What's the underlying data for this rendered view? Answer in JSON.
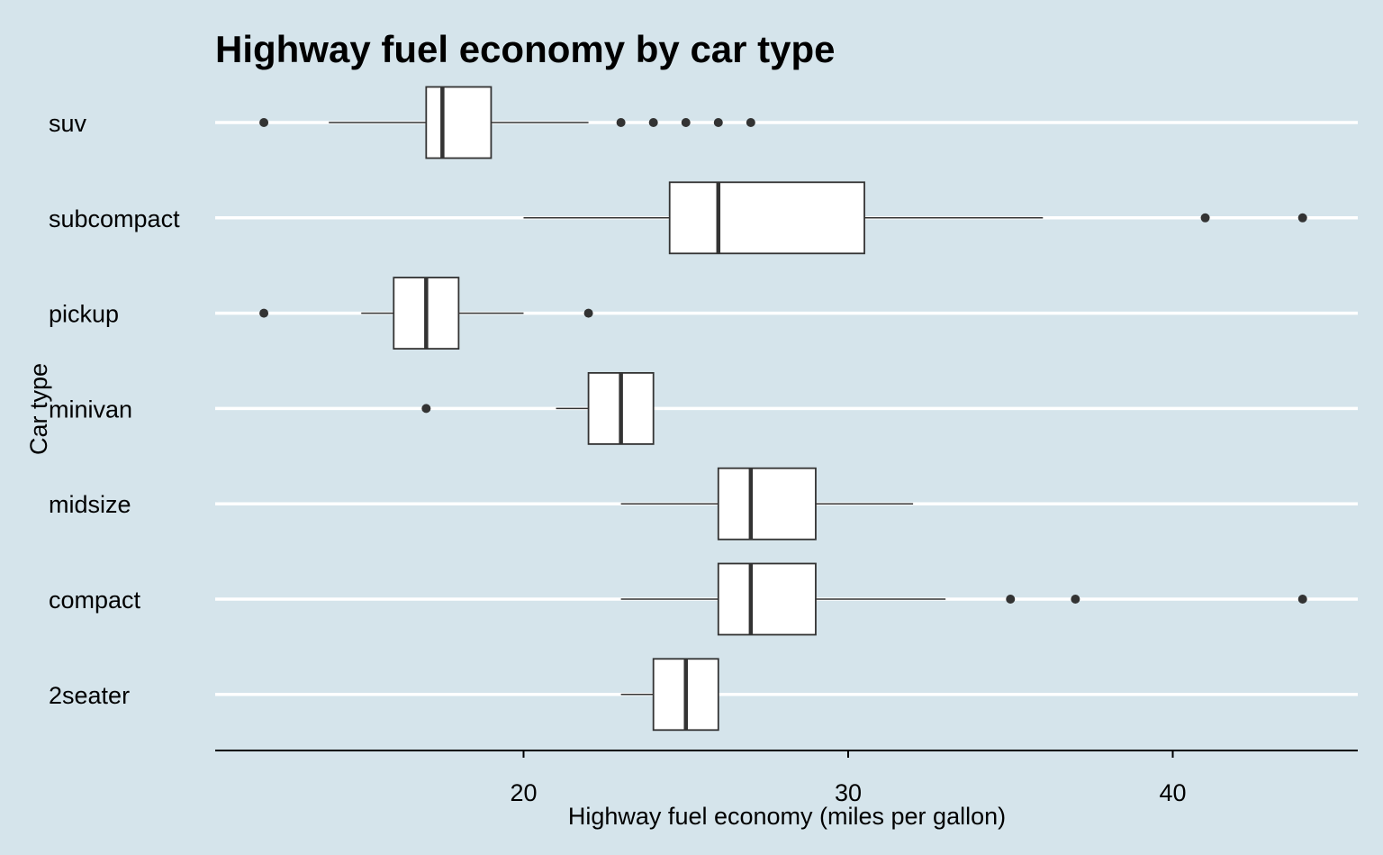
{
  "chart_data": {
    "type": "boxplot",
    "orientation": "horizontal",
    "title": "Highway fuel economy by car type",
    "xlabel": "Highway fuel economy (miles per gallon)",
    "ylabel": "Car type",
    "xlim": [
      10.5,
      45.7
    ],
    "xticks": [
      20,
      30,
      40
    ],
    "grid": "horizontal major lines only",
    "legend": "none",
    "colors": {
      "background": "#d5e4eb",
      "grid": "#ffffff",
      "box_fill": "#ffffff",
      "box_stroke": "#333333",
      "outlier": "#333333",
      "axis": "#000000"
    },
    "categories": [
      "suv",
      "subcompact",
      "pickup",
      "minivan",
      "midsize",
      "compact",
      "2seater"
    ],
    "boxes": [
      {
        "category": "suv",
        "whisker_low": 14,
        "q1": 17,
        "median": 17.5,
        "q3": 19,
        "whisker_high": 22,
        "outliers": [
          12,
          23,
          24,
          25,
          26,
          27
        ]
      },
      {
        "category": "subcompact",
        "whisker_low": 20,
        "q1": 24.5,
        "median": 26,
        "q3": 30.5,
        "whisker_high": 36,
        "outliers": [
          41,
          44
        ]
      },
      {
        "category": "pickup",
        "whisker_low": 15,
        "q1": 16,
        "median": 17,
        "q3": 18,
        "whisker_high": 20,
        "outliers": [
          12,
          22
        ]
      },
      {
        "category": "minivan",
        "whisker_low": 21,
        "q1": 22,
        "median": 23,
        "q3": 24,
        "whisker_high": 24,
        "outliers": [
          17
        ]
      },
      {
        "category": "midsize",
        "whisker_low": 23,
        "q1": 26,
        "median": 27,
        "q3": 29,
        "whisker_high": 32,
        "outliers": []
      },
      {
        "category": "compact",
        "whisker_low": 23,
        "q1": 26,
        "median": 27,
        "q3": 29,
        "whisker_high": 33,
        "outliers": [
          35,
          37,
          44
        ]
      },
      {
        "category": "2seater",
        "whisker_low": 23,
        "q1": 24,
        "median": 25,
        "q3": 26,
        "whisker_high": 26,
        "outliers": []
      }
    ]
  }
}
